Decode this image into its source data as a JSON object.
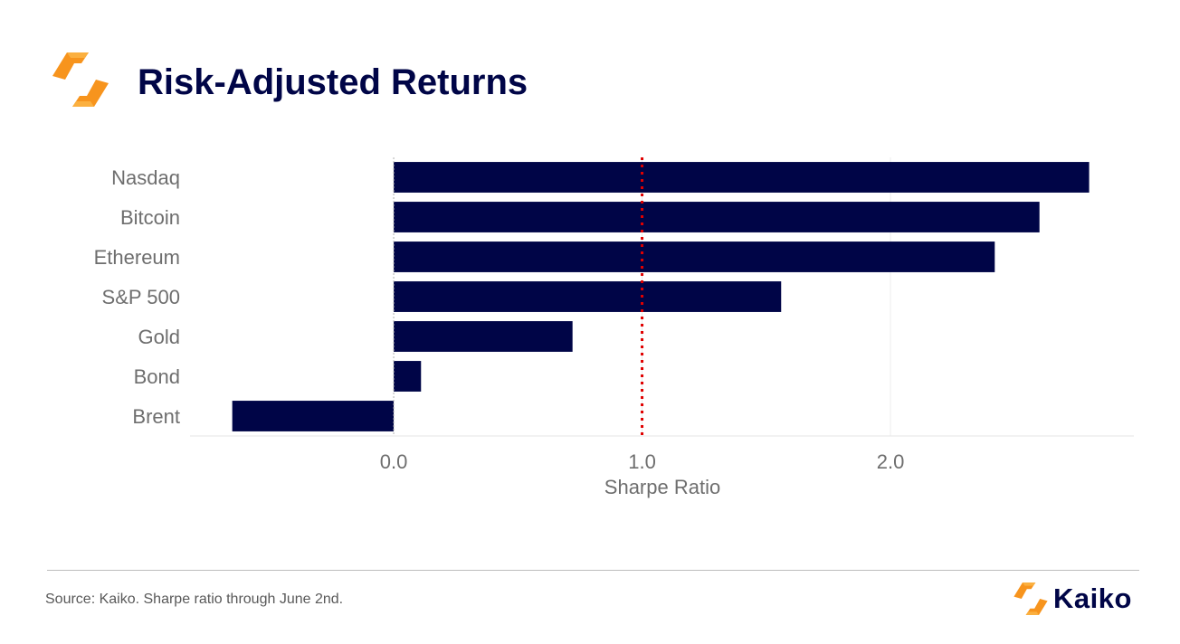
{
  "header": {
    "title": "Risk-Adjusted Returns",
    "logo_icon": "kaiko-logo-icon"
  },
  "footer": {
    "source": "Source: Kaiko. Sharpe ratio through June 2nd.",
    "brand_name": "Kaiko",
    "brand_icon": "kaiko-logo-icon"
  },
  "colors": {
    "bar": "#000547",
    "reference_line": "#e00000",
    "logo_orange": "#f7941d",
    "logo_yellow": "#fbb040",
    "title": "#000547"
  },
  "chart_data": {
    "type": "bar",
    "orientation": "horizontal",
    "categories": [
      "Nasdaq",
      "Bitcoin",
      "Ethereum",
      "S&P 500",
      "Gold",
      "Bond",
      "Brent"
    ],
    "values": [
      2.8,
      2.6,
      2.42,
      1.56,
      0.72,
      0.11,
      -0.65
    ],
    "xlabel": "Sharpe Ratio",
    "ylabel": "",
    "xlim": [
      -0.82,
      2.98
    ],
    "x_ticks": [
      0.0,
      1.0,
      2.0
    ],
    "x_tick_labels": [
      "0.0",
      "1.0",
      "2.0"
    ],
    "reference_line": {
      "value": 1.0,
      "style": "dotted"
    },
    "grid": {
      "vertical": true,
      "horizontal": false
    }
  }
}
